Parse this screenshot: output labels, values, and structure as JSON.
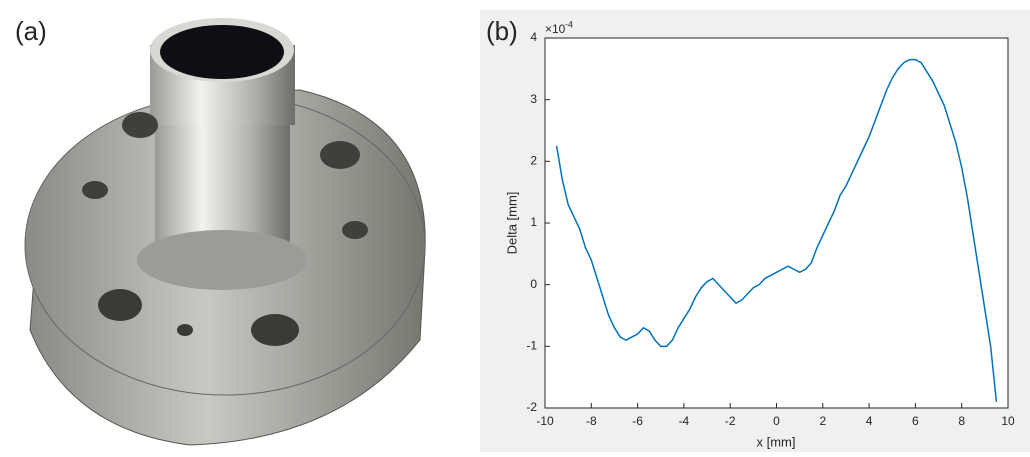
{
  "panel_labels": [
    "(a)",
    "(b)"
  ],
  "chart_data": {
    "type": "line",
    "x_label": "x [mm]",
    "y_label": "Delta [mm]",
    "y_scale_base": "×10",
    "y_scale_exponent": "-4",
    "x": [
      -9.5,
      -9.25,
      -9,
      -8.75,
      -8.5,
      -8.25,
      -8,
      -7.75,
      -7.5,
      -7.25,
      -7,
      -6.75,
      -6.5,
      -6.25,
      -6,
      -5.75,
      -5.5,
      -5.25,
      -5,
      -4.75,
      -4.5,
      -4.25,
      -4,
      -3.75,
      -3.5,
      -3.25,
      -3,
      -2.75,
      -2.5,
      -2.25,
      -2,
      -1.75,
      -1.5,
      -1.25,
      -1,
      -0.75,
      -0.5,
      -0.25,
      0,
      0.25,
      0.5,
      0.75,
      1,
      1.25,
      1.5,
      1.75,
      2,
      2.25,
      2.5,
      2.75,
      3,
      3.25,
      3.5,
      3.75,
      4,
      4.25,
      4.5,
      4.75,
      5,
      5.25,
      5.5,
      5.75,
      6,
      6.25,
      6.5,
      6.75,
      7,
      7.25,
      7.5,
      7.75,
      8,
      8.25,
      8.5,
      8.75,
      9,
      9.25,
      9.5
    ],
    "series": [
      {
        "color": "#0072bd",
        "values": [
          2.25,
          1.7,
          1.3,
          1.1,
          0.9,
          0.6,
          0.4,
          0.1,
          -0.2,
          -0.5,
          -0.7,
          -0.85,
          -0.9,
          -0.85,
          -0.8,
          -0.7,
          -0.75,
          -0.9,
          -1.0,
          -1.0,
          -0.9,
          -0.7,
          -0.55,
          -0.4,
          -0.2,
          -0.05,
          0.05,
          0.1,
          0.0,
          -0.1,
          -0.2,
          -0.3,
          -0.25,
          -0.15,
          -0.05,
          0.0,
          0.1,
          0.15,
          0.2,
          0.25,
          0.3,
          0.25,
          0.2,
          0.25,
          0.35,
          0.6,
          0.8,
          1.0,
          1.2,
          1.45,
          1.6,
          1.8,
          2.0,
          2.2,
          2.4,
          2.65,
          2.9,
          3.15,
          3.35,
          3.5,
          3.6,
          3.65,
          3.65,
          3.6,
          3.45,
          3.3,
          3.1,
          2.9,
          2.6,
          2.3,
          1.9,
          1.4,
          0.8,
          0.2,
          -0.4,
          -1.0,
          -1.9
        ]
      }
    ],
    "xlim": [
      -10,
      10
    ],
    "ylim": [
      -2,
      4
    ],
    "xticks": [
      -10,
      -8,
      -6,
      -4,
      -2,
      0,
      2,
      4,
      6,
      8,
      10
    ],
    "yticks": [
      -2,
      -1,
      0,
      1,
      2,
      3,
      4
    ]
  }
}
